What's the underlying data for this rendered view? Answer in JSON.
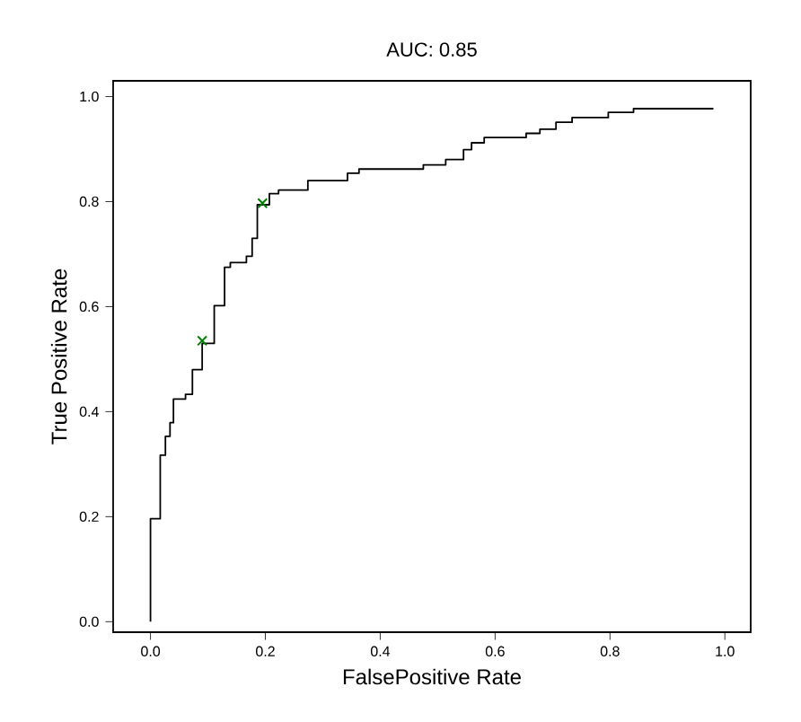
{
  "chart_data": {
    "type": "line",
    "title": "AUC: 0.85",
    "xlabel": "FalsePositive Rate",
    "ylabel": "True Positive Rate",
    "xlim": [
      -0.065,
      1.045
    ],
    "ylim": [
      -0.02,
      1.03
    ],
    "xticks": [
      {
        "value": 0,
        "label": "0.0"
      },
      {
        "value": 0.2,
        "label": "0.2"
      },
      {
        "value": 0.4,
        "label": "0.4"
      },
      {
        "value": 0.6,
        "label": "0.6"
      },
      {
        "value": 0.8,
        "label": "0.8"
      },
      {
        "value": 1,
        "label": "1.0"
      }
    ],
    "yticks": [
      {
        "value": 0,
        "label": "0.0"
      },
      {
        "value": 0.2,
        "label": "0.2"
      },
      {
        "value": 0.4,
        "label": "0.4"
      },
      {
        "value": 0.6,
        "label": "0.6"
      },
      {
        "value": 0.8,
        "label": "0.8"
      },
      {
        "value": 1,
        "label": "1.0"
      }
    ],
    "grid": false,
    "series": [
      {
        "color": "#000000",
        "marker": "none",
        "x": [
          0,
          0,
          0.017,
          0.017,
          0.026,
          0.026,
          0.034,
          0.034,
          0.04,
          0.04,
          0.061,
          0.061,
          0.073,
          0.073,
          0.09,
          0.09,
          0.111,
          0.111,
          0.129,
          0.129,
          0.139,
          0.139,
          0.167,
          0.167,
          0.177,
          0.177,
          0.186,
          0.186,
          0.207,
          0.207,
          0.223,
          0.223,
          0.274,
          0.274,
          0.343,
          0.343,
          0.363,
          0.363,
          0.475,
          0.475,
          0.514,
          0.514,
          0.545,
          0.545,
          0.559,
          0.559,
          0.581,
          0.581,
          0.654,
          0.654,
          0.678,
          0.678,
          0.706,
          0.706,
          0.734,
          0.734,
          0.797,
          0.797,
          0.841,
          0.841,
          0.98
        ],
        "values": [
          0,
          0.196,
          0.196,
          0.317,
          0.317,
          0.353,
          0.353,
          0.379,
          0.379,
          0.424,
          0.424,
          0.433,
          0.433,
          0.48,
          0.48,
          0.53,
          0.53,
          0.602,
          0.602,
          0.675,
          0.675,
          0.684,
          0.684,
          0.696,
          0.696,
          0.73,
          0.73,
          0.794,
          0.794,
          0.815,
          0.815,
          0.822,
          0.822,
          0.84,
          0.84,
          0.854,
          0.854,
          0.862,
          0.862,
          0.87,
          0.87,
          0.88,
          0.88,
          0.899,
          0.899,
          0.912,
          0.912,
          0.922,
          0.922,
          0.93,
          0.93,
          0.938,
          0.938,
          0.951,
          0.951,
          0.96,
          0.96,
          0.97,
          0.97,
          0.977,
          0.977
        ]
      },
      {
        "type": "scatter",
        "color": "#008000",
        "marker": "cross",
        "x": [
          0.09,
          0.195
        ],
        "values": [
          0.535,
          0.797
        ]
      }
    ]
  }
}
